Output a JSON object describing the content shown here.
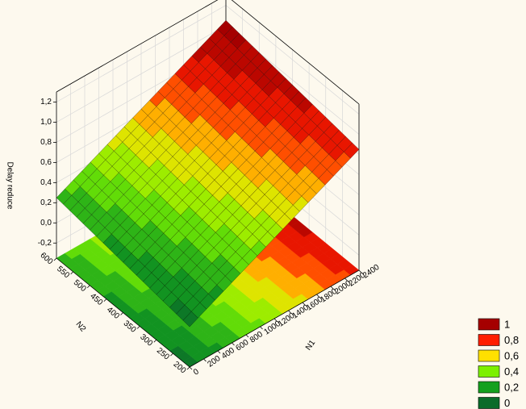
{
  "chart_data": {
    "type": "surface3d",
    "xlabel": "N1",
    "ylabel": "N2",
    "zlabel": "Delay reduce",
    "xlim": [
      0,
      2400
    ],
    "ylim": [
      200,
      600
    ],
    "zlim": [
      -0.35,
      1.3
    ],
    "xticks": [
      0,
      200,
      400,
      600,
      800,
      1000,
      1200,
      1400,
      1600,
      1800,
      2000,
      2200,
      2400
    ],
    "yticks": [
      200,
      250,
      300,
      350,
      400,
      450,
      500,
      550,
      600
    ],
    "zticks": [
      {
        "value": -0.2,
        "label": "-0,2"
      },
      {
        "value": 0.0,
        "label": "0,0"
      },
      {
        "value": 0.2,
        "label": "0,2"
      },
      {
        "value": 0.4,
        "label": "0,4"
      },
      {
        "value": 0.6,
        "label": "0,6"
      },
      {
        "value": 0.8,
        "label": "0,8"
      },
      {
        "value": 1.0,
        "label": "1,0"
      },
      {
        "value": 1.2,
        "label": "1,2"
      }
    ],
    "x": [
      0,
      600,
      1200,
      1800,
      2400
    ],
    "y": [
      200,
      300,
      400,
      500,
      600
    ],
    "z": [
      [
        0.05,
        0.25,
        0.45,
        0.65,
        0.85
      ],
      [
        0.1,
        0.3,
        0.5,
        0.7,
        0.9
      ],
      [
        0.15,
        0.35,
        0.55,
        0.75,
        0.95
      ],
      [
        0.2,
        0.4,
        0.6,
        0.8,
        1.0
      ],
      [
        0.25,
        0.45,
        0.65,
        0.85,
        1.05
      ]
    ],
    "levels": [
      1,
      {
        "value": 0.8,
        "label": "0,8"
      },
      {
        "value": 0.6,
        "label": "0,6"
      },
      {
        "value": 0.4,
        "label": "0,4"
      },
      {
        "value": 0.2,
        "label": "0,2"
      },
      0
    ],
    "level_colors": [
      "#a50000",
      "#ff1e00",
      "#ffe000",
      "#7cf000",
      "#14a01e",
      "#0a6b2a"
    ],
    "grid": true
  }
}
